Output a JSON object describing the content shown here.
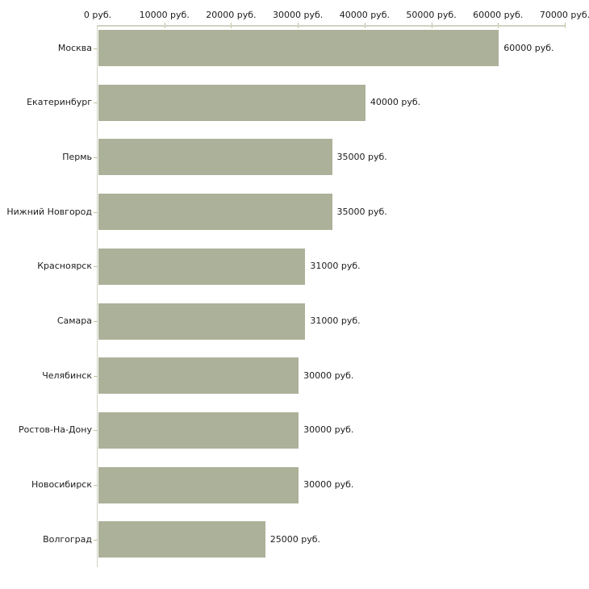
{
  "chart_data": {
    "type": "bar",
    "orientation": "horizontal",
    "title": "",
    "xlabel": "",
    "ylabel": "",
    "xlim": [
      0,
      70000
    ],
    "grid": false,
    "legend": "none",
    "x_axis_position": "top",
    "x_tick_values": [
      0,
      10000,
      20000,
      30000,
      40000,
      50000,
      60000,
      70000
    ],
    "x_tick_labels": [
      "0 руб.",
      "10000 руб.",
      "20000 руб.",
      "30000 руб.",
      "40000 руб.",
      "50000 руб.",
      "60000 руб.",
      "70000 руб."
    ],
    "categories": [
      "Москва",
      "Екатеринбург",
      "Пермь",
      "Нижний Новгород",
      "Красноярск",
      "Самара",
      "Челябинск",
      "Ростов-На-Дону",
      "Новосибирск",
      "Волгоград"
    ],
    "values": [
      60000,
      40000,
      35000,
      35000,
      31000,
      31000,
      30000,
      30000,
      30000,
      25000
    ],
    "value_labels": [
      "60000 руб.",
      "40000 руб.",
      "35000 руб.",
      "35000 руб.",
      "31000 руб.",
      "31000 руб.",
      "30000 руб.",
      "30000 руб.",
      "30000 руб.",
      "25000 руб."
    ],
    "colors": {
      "bar_fill": "#acb199",
      "axis_line": "#d0d2c3",
      "tick_mark": "#c0c49a",
      "text": "#1c1c1c",
      "background": "#ffffff"
    }
  }
}
